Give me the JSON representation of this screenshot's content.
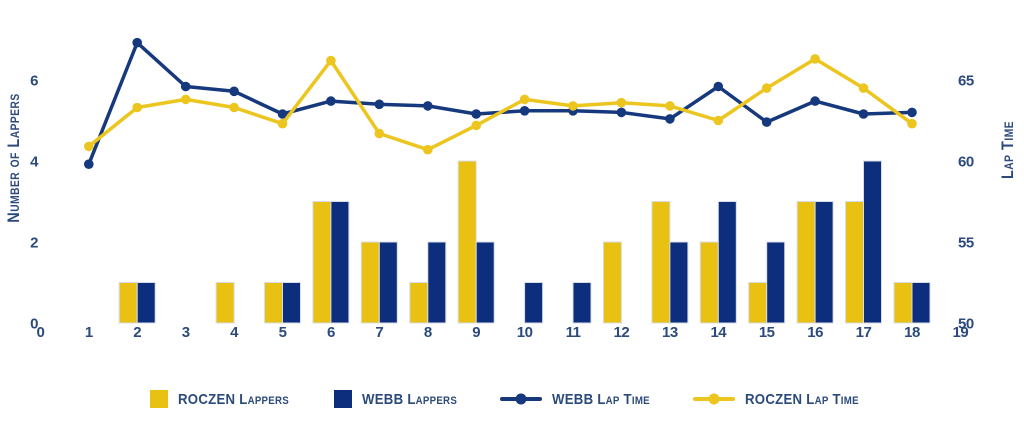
{
  "chart_data": {
    "type": "combo-bar-line",
    "background": "#FFFFFF",
    "text_color": "#2C4A7B",
    "grid": false,
    "x_axis": {
      "ticks": [
        "0",
        "1",
        "2",
        "3",
        "4",
        "5",
        "6",
        "7",
        "8",
        "9",
        "10",
        "11",
        "12",
        "13",
        "14",
        "15",
        "16",
        "17",
        "18",
        "19"
      ]
    },
    "left_axis": {
      "title": "Number of Lappers",
      "ticks": [
        0,
        2,
        4,
        6
      ],
      "min": 0,
      "max": 8
    },
    "right_axis": {
      "title": "Lap Time",
      "ticks": [
        50,
        55,
        60,
        65
      ],
      "min": 50,
      "max": 70
    },
    "laps": [
      1,
      2,
      3,
      4,
      5,
      6,
      7,
      8,
      9,
      10,
      11,
      12,
      13,
      14,
      15,
      16,
      17,
      18
    ],
    "series": [
      {
        "name": "ROCZEN Lappers",
        "type": "bar",
        "axis": "left",
        "color": "#E9C113",
        "values": [
          0,
          1,
          0,
          1,
          1,
          3,
          2,
          1,
          4,
          0,
          0,
          2,
          3,
          2,
          1,
          3,
          3,
          1
        ]
      },
      {
        "name": "WEBB Lappers",
        "type": "bar",
        "axis": "left",
        "color": "#0D2E7C",
        "values": [
          0,
          1,
          0,
          0,
          1,
          3,
          2,
          2,
          2,
          1,
          1,
          0,
          2,
          3,
          2,
          3,
          4,
          1
        ]
      },
      {
        "name": "WEBB Lap Time",
        "type": "line",
        "axis": "right",
        "color": "#16387D",
        "values": [
          59.8,
          67.3,
          64.6,
          64.3,
          62.9,
          63.7,
          63.5,
          63.4,
          62.9,
          63.1,
          63.1,
          63.0,
          62.6,
          64.6,
          62.4,
          63.7,
          62.9,
          63.0
        ]
      },
      {
        "name": "ROCZEN Lap Time",
        "type": "line",
        "axis": "right",
        "color": "#ECC51F",
        "values": [
          60.9,
          63.3,
          63.8,
          63.3,
          62.3,
          66.2,
          61.7,
          60.7,
          62.2,
          63.8,
          63.4,
          63.6,
          63.4,
          62.5,
          64.5,
          66.3,
          64.5,
          62.3
        ]
      }
    ],
    "legend": {
      "position": "bottom",
      "entries": [
        "ROCZEN Lappers",
        "WEBB Lappers",
        "WEBB Lap Time",
        "ROCZEN Lap Time"
      ]
    }
  }
}
